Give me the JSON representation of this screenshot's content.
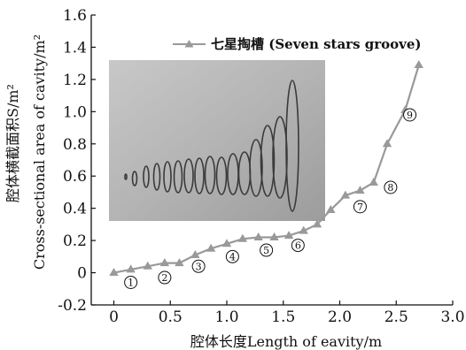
{
  "chart_data": {
    "type": "line",
    "xlabel": "腔体长度Length of eavity/m",
    "ylabel_top": "腔体横截面积S/m²",
    "ylabel_bottom": "Cross-sectional area of cavity/m²",
    "xlim": [
      -0.2,
      3.0
    ],
    "ylim": [
      -0.2,
      1.6
    ],
    "xticks": [
      "0",
      "0.5",
      "1.0",
      "1.5",
      "2.0",
      "2.5",
      "3.0"
    ],
    "yticks": [
      "-0.2",
      "0",
      "0.2",
      "0.4",
      "0.6",
      "0.8",
      "1.0",
      "1.2",
      "1.4",
      "1.6"
    ],
    "grid": false,
    "legend_position": "top-right",
    "series": [
      {
        "name": "七星掏槽 (Seven stars groove)",
        "color": "#999999",
        "marker": "triangle",
        "x": [
          0,
          0.15,
          0.3,
          0.45,
          0.58,
          0.72,
          0.86,
          1.0,
          1.14,
          1.28,
          1.42,
          1.55,
          1.68,
          1.8,
          1.92,
          2.05,
          2.18,
          2.3,
          2.42,
          2.58,
          2.7
        ],
        "y": [
          0,
          0.02,
          0.04,
          0.06,
          0.06,
          0.11,
          0.15,
          0.18,
          0.21,
          0.22,
          0.22,
          0.23,
          0.26,
          0.3,
          0.39,
          0.48,
          0.51,
          0.56,
          0.8,
          1.01,
          1.29
        ]
      }
    ],
    "annotations": [
      {
        "label": "①",
        "x": 0.15,
        "y": -0.06
      },
      {
        "label": "②",
        "x": 0.45,
        "y": -0.03
      },
      {
        "label": "③",
        "x": 0.75,
        "y": 0.04
      },
      {
        "label": "④",
        "x": 1.05,
        "y": 0.1
      },
      {
        "label": "⑤",
        "x": 1.35,
        "y": 0.14
      },
      {
        "label": "⑥",
        "x": 1.63,
        "y": 0.17
      },
      {
        "label": "⑦",
        "x": 2.18,
        "y": 0.41
      },
      {
        "label": "⑧",
        "x": 2.45,
        "y": 0.53
      },
      {
        "label": "⑨",
        "x": 2.62,
        "y": 0.98
      }
    ]
  }
}
